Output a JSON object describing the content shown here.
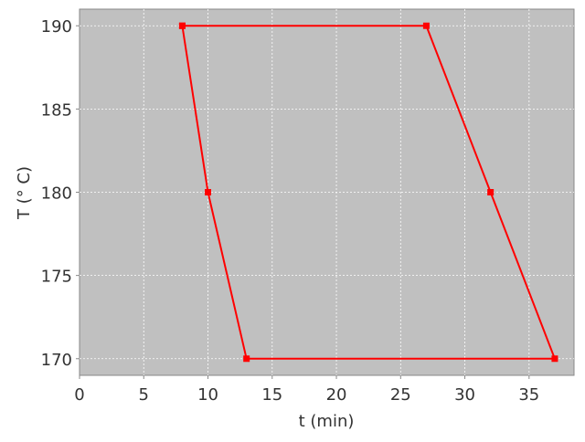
{
  "chart_data": {
    "type": "line",
    "title": "",
    "xlabel": "t (min)",
    "ylabel": "T (° C)",
    "xlim": [
      0,
      38.5
    ],
    "ylim": [
      169,
      191
    ],
    "xticks": [
      0,
      5,
      10,
      15,
      20,
      25,
      30,
      35
    ],
    "yticks": [
      170,
      175,
      180,
      185,
      190
    ],
    "grid": true,
    "legend": "none",
    "background_color": "#c0c0c0",
    "series": [
      {
        "color": "#ff0000",
        "marker": "square",
        "x": [
          8,
          27,
          32,
          37,
          13,
          10,
          8
        ],
        "y": [
          190,
          190,
          180,
          170,
          170,
          180,
          190
        ]
      }
    ]
  }
}
